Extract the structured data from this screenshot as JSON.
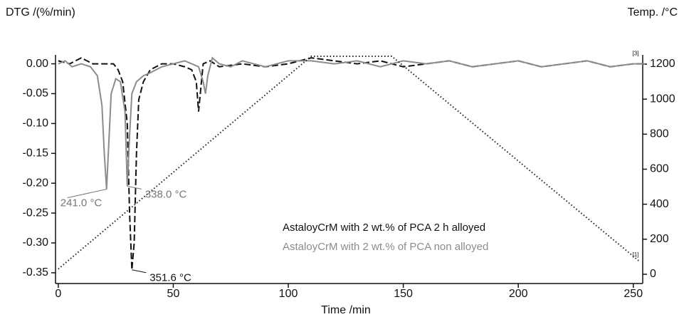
{
  "chart_data": {
    "type": "line",
    "y_label": "DTG /(%/min)",
    "y2_label": "Temp. /°C",
    "x_label": "Time /min",
    "xlim": [
      -1.2,
      254.1
    ],
    "xticks": [
      0,
      50,
      100,
      150,
      200,
      250
    ],
    "ylim": [
      -0.368,
      0.015
    ],
    "yticks": [
      {
        "value": 0,
        "label": "0.00"
      },
      -0.05,
      {
        "value": -0.1,
        "label": "-0.10"
      },
      -0.15,
      {
        "value": -0.2,
        "label": "-0.20"
      },
      -0.25,
      {
        "value": -0.3,
        "label": "-0.30"
      },
      -0.35
    ],
    "y2lim": [
      -53,
      1253
    ],
    "y2ticks": [
      0,
      200,
      400,
      600,
      800,
      1000,
      1200
    ],
    "series": [
      {
        "name": "AstaloyCrM with 2 wt.% of PCA 2 h alloyed",
        "color": "#111111",
        "line_style": "dashed",
        "x": [
          0,
          5,
          10,
          15,
          20,
          24,
          26,
          28,
          30,
          31,
          32,
          33,
          34,
          35,
          37,
          40,
          45,
          50,
          55,
          58,
          60,
          61,
          62,
          63,
          66,
          70,
          80,
          90,
          100,
          110,
          120,
          130,
          140,
          150,
          160,
          170,
          180,
          190,
          200,
          210,
          220,
          230,
          240,
          250,
          255
        ],
        "values": [
          0.005,
          0.0,
          0.01,
          0.0,
          0.0,
          0.0,
          -0.01,
          -0.03,
          -0.1,
          -0.25,
          -0.345,
          -0.3,
          -0.15,
          -0.06,
          -0.03,
          -0.01,
          0.0,
          0.0,
          -0.005,
          -0.01,
          -0.03,
          -0.08,
          -0.04,
          0.0,
          0.005,
          -0.005,
          0.0,
          -0.005,
          0.0,
          0.01,
          0.005,
          0.0,
          0.005,
          -0.005,
          0.0,
          0.005,
          -0.005,
          0.0,
          0.005,
          -0.005,
          0.0,
          0.005,
          -0.005,
          0.0,
          0.0
        ]
      },
      {
        "name": "AstaloyCrM with 2 wt.% of PCA non alloyed",
        "color": "#8c8c8c",
        "line_style": "solid",
        "x": [
          0,
          3,
          6,
          10,
          14,
          17,
          19,
          20,
          21,
          22,
          23,
          25,
          27,
          29,
          30,
          31,
          32,
          34,
          37,
          40,
          45,
          50,
          55,
          58,
          61,
          63,
          64,
          65,
          67,
          70,
          75,
          80,
          90,
          100,
          110,
          120,
          130,
          140,
          150,
          160,
          170,
          180,
          190,
          200,
          210,
          220,
          230,
          240,
          250,
          255
        ],
        "values": [
          0.0,
          0.005,
          -0.005,
          0.0,
          -0.005,
          -0.02,
          -0.07,
          -0.15,
          -0.21,
          -0.13,
          -0.05,
          -0.025,
          -0.03,
          -0.08,
          -0.205,
          -0.12,
          -0.05,
          -0.03,
          -0.02,
          -0.015,
          -0.005,
          0.0,
          0.005,
          0.0,
          -0.005,
          -0.03,
          -0.05,
          -0.02,
          0.01,
          0.0,
          -0.005,
          0.005,
          -0.005,
          0.005,
          0.005,
          0.0,
          0.005,
          -0.005,
          0.005,
          0.0,
          0.005,
          -0.005,
          0.0,
          0.005,
          -0.005,
          0.0,
          0.005,
          -0.005,
          0.0,
          0.0
        ]
      },
      {
        "color": "#222222",
        "line_style": "dotted",
        "axis": "y2",
        "x": [
          0,
          110,
          145,
          253
        ],
        "values": [
          30,
          1245,
          1245,
          70
        ]
      }
    ],
    "annotations": [
      {
        "text": "241.0 °C",
        "x": 21,
        "y": -0.21,
        "color": "#777777"
      },
      {
        "text": "338.0 °C",
        "x": 30,
        "y": -0.205,
        "color": "#777777"
      },
      {
        "text": "351.6 °C",
        "x": 32,
        "y": -0.345,
        "color": "#111111"
      }
    ],
    "curve_labels": [
      {
        "text": "[3]",
        "x": 251,
        "y": 0.005
      },
      {
        "text": "[1]",
        "x": 251,
        "y": 70,
        "axis": "y2"
      }
    ]
  }
}
